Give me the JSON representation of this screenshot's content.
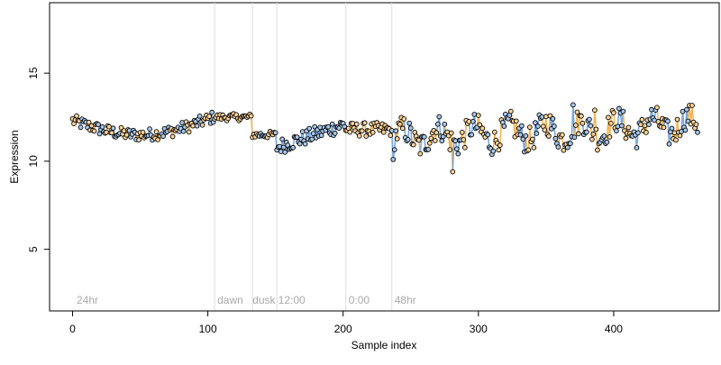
{
  "chart_data": {
    "type": "scatter",
    "xlabel": "Sample index",
    "ylabel": "Expression",
    "xlim": [
      -17,
      478
    ],
    "ylim": [
      1.5,
      19.0
    ],
    "x_ticks": [
      0,
      100,
      200,
      300,
      400
    ],
    "y_ticks": [
      5,
      10,
      15
    ],
    "grid": false,
    "vlines": [
      105,
      133,
      151,
      202,
      236
    ],
    "phase_labels": [
      {
        "text": "24hr",
        "x": 3
      },
      {
        "text": "dawn",
        "x": 107
      },
      {
        "text": "dusk",
        "x": 133
      },
      {
        "text": "12:00",
        "x": 152
      },
      {
        "text": "0:00",
        "x": 204
      },
      {
        "text": "48hr",
        "x": 238
      }
    ],
    "colors": {
      "point_outline": "#000000",
      "light_fill": "#ffd59a",
      "dark_fill": "#a9c8ec",
      "line_light": "#f0b75a",
      "line_dark": "#7aa7dc",
      "vline": "#dddddd",
      "phase_label": "#aaaaaa"
    },
    "segments": [
      {
        "start": 0,
        "end": 104,
        "base": 12.0,
        "noise": 0.35,
        "kind": "mixed"
      },
      {
        "start": 105,
        "end": 132,
        "base": 12.5,
        "noise": 0.2,
        "kind": "light"
      },
      {
        "start": 133,
        "end": 150,
        "base": 11.5,
        "noise": 0.2,
        "kind": "mixed"
      },
      {
        "start": 151,
        "end": 201,
        "base": 11.4,
        "noise": 0.45,
        "kind": "dark"
      },
      {
        "start": 202,
        "end": 235,
        "base": 11.8,
        "noise": 0.4,
        "kind": "light"
      },
      {
        "start": 236,
        "end": 462,
        "base": 11.6,
        "noise": 0.75,
        "kind": "mixed"
      }
    ],
    "notable_points": [
      {
        "x": 237,
        "y": 10.1
      },
      {
        "x": 281,
        "y": 9.4
      },
      {
        "x": 370,
        "y": 13.2
      },
      {
        "x": 386,
        "y": 12.9
      }
    ]
  }
}
